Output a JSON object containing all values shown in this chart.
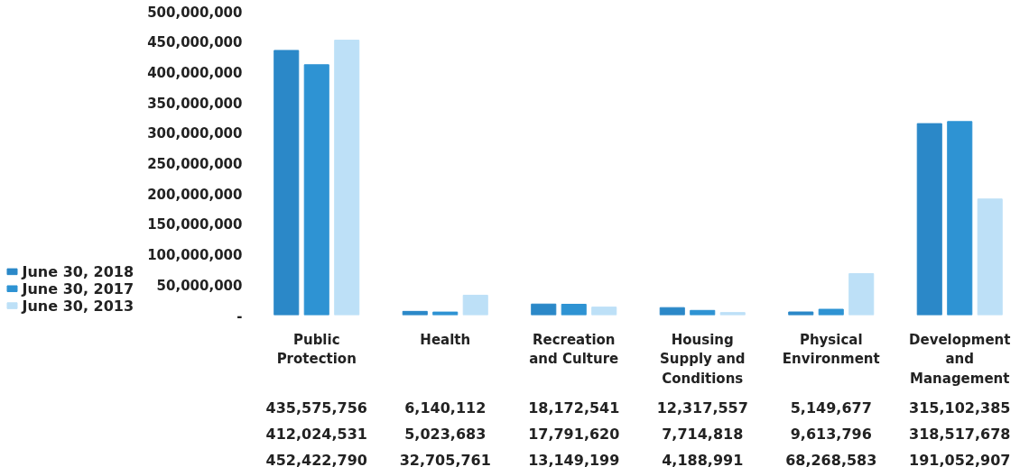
{
  "chart_data": {
    "type": "bar",
    "categories": [
      "Public Protection",
      "Health",
      "Recreation and Culture",
      "Housing Supply and Conditions",
      "Physical Environment",
      "Development and Management"
    ],
    "series": [
      {
        "name": "June 30, 2018",
        "color": "#2b88c8",
        "values": [
          435575756,
          6140112,
          18172541,
          12317557,
          5149677,
          315102385
        ],
        "value_labels": [
          "435,575,756",
          "6,140,112",
          "18,172,541",
          "12,317,557",
          "5,149,677",
          "315,102,385"
        ]
      },
      {
        "name": "June 30, 2017",
        "color": "#2e93d3",
        "values": [
          412024531,
          5023683,
          17791620,
          7714818,
          9613796,
          318517678
        ],
        "value_labels": [
          "412,024,531",
          "5,023,683",
          "17,791,620",
          "7,714,818",
          "9,613,796",
          "318,517,678"
        ]
      },
      {
        "name": "June 30, 2013",
        "color": "#bde0f7",
        "values": [
          452422790,
          32705761,
          13149199,
          4188991,
          68268583,
          191052907
        ],
        "value_labels": [
          "452,422,790",
          "32,705,761",
          "13,149,199",
          "4,188,991",
          "68,268,583",
          "191,052,907"
        ]
      }
    ],
    "ylim": [
      0,
      500000000
    ],
    "yticks": [
      {
        "value": 0,
        "label": "-"
      },
      {
        "value": 50000000,
        "label": "50,000,000"
      },
      {
        "value": 100000000,
        "label": "100,000,000"
      },
      {
        "value": 150000000,
        "label": "150,000,000"
      },
      {
        "value": 200000000,
        "label": "200,000,000"
      },
      {
        "value": 250000000,
        "label": "250,000,000"
      },
      {
        "value": 300000000,
        "label": "300,000,000"
      },
      {
        "value": 350000000,
        "label": "350,000,000"
      },
      {
        "value": 400000000,
        "label": "400,000,000"
      },
      {
        "value": 450000000,
        "label": "450,000,000"
      },
      {
        "value": 500000000,
        "label": "500,000,000"
      }
    ],
    "grid": false,
    "legend": "bottom left"
  }
}
